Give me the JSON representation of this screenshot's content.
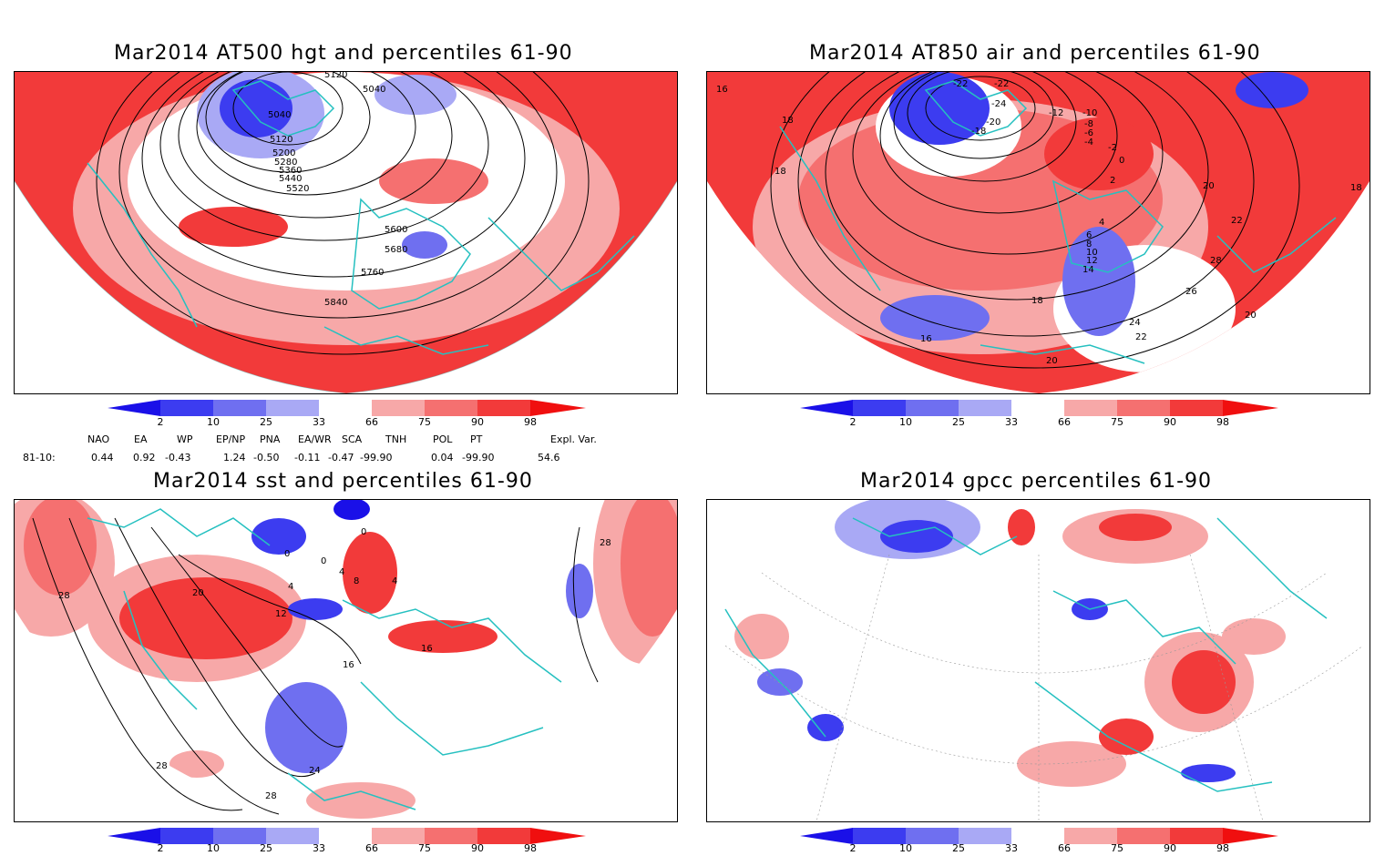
{
  "panels": {
    "top_left": {
      "title": "Mar2014 AT500 hgt and percentiles 61-90",
      "contour_labels": [
        "5120",
        "5040",
        "5040",
        "5120",
        "5200",
        "5280",
        "5360",
        "5440",
        "5520",
        "5600",
        "5680",
        "5760",
        "5840"
      ]
    },
    "top_right": {
      "title": "Mar2014 AT850 air and percentiles 61-90",
      "contour_labels": [
        "16",
        "18",
        "18",
        "-22",
        "-22",
        "-24",
        "-20",
        "-18",
        "-12",
        "-10",
        "-8",
        "-6",
        "-4",
        "-2",
        "0",
        "2",
        "4",
        "6",
        "8",
        "10",
        "12",
        "14",
        "18",
        "16",
        "20",
        "22",
        "24",
        "26",
        "28",
        "20",
        "22",
        "20",
        "18"
      ]
    },
    "bottom_left": {
      "title": "Mar2014 sst and percentiles 61-90",
      "contour_labels": [
        "28",
        "28",
        "20",
        "0",
        "0",
        "0",
        "4",
        "8",
        "4",
        "4",
        "12",
        "16",
        "16",
        "24",
        "28",
        "28"
      ]
    },
    "bottom_right": {
      "title": "Mar2014 gpcc percentiles 61-90"
    }
  },
  "colorbar": {
    "labels": [
      "2",
      "10",
      "25",
      "33",
      "66",
      "75",
      "90",
      "98"
    ],
    "colors": [
      "#1a10e8",
      "#3c3cf0",
      "#6f6ff0",
      "#a9a9f5",
      "#ffffff",
      "#f7a8a8",
      "#f57070",
      "#f23a3a",
      "#f00f0f"
    ]
  },
  "teleconnections": {
    "headers": [
      "NAO",
      "EA",
      "WP",
      "EP/NP",
      "PNA",
      "EA/WR",
      "SCA",
      "TNH",
      "POL",
      "PT",
      "Expl. Var."
    ],
    "row_label": "81-10:",
    "values": [
      "0.44",
      "0.92",
      "-0.43",
      "1.24",
      "-0.50",
      "-0.11",
      "-0.47",
      "-99.90",
      "0.04",
      "-99.90",
      "54.6"
    ]
  },
  "colors": {
    "coastline": "#25c0c0",
    "contour": "#000000",
    "red": "#f23a3a",
    "light_red": "#f7a8a8",
    "blue": "#3c3cf0",
    "light_blue": "#a9a9f5"
  }
}
